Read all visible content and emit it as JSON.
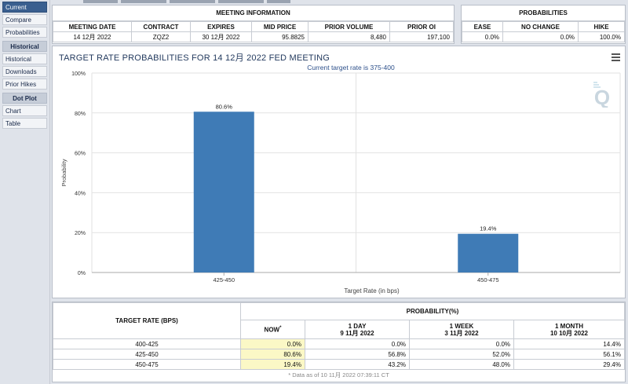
{
  "sidebar": {
    "items": [
      {
        "label": "Current",
        "active": true
      },
      {
        "label": "Compare"
      },
      {
        "label": "Probabilities"
      }
    ],
    "historical_heading": "Historical",
    "historical_items": [
      {
        "label": "Historical"
      },
      {
        "label": "Downloads"
      },
      {
        "label": "Prior Hikes"
      }
    ],
    "dotplot_heading": "Dot Plot",
    "dotplot_items": [
      {
        "label": "Chart"
      },
      {
        "label": "Table"
      }
    ]
  },
  "meeting_info": {
    "title": "MEETING INFORMATION",
    "headers": [
      "MEETING DATE",
      "CONTRACT",
      "EXPIRES",
      "MID PRICE",
      "PRIOR VOLUME",
      "PRIOR OI"
    ],
    "row": [
      "14 12月 2022",
      "ZQZ2",
      "30 12月 2022",
      "95.8825",
      "8,480",
      "197,100"
    ]
  },
  "probabilities": {
    "title": "PROBABILITIES",
    "headers": [
      "EASE",
      "NO CHANGE",
      "HIKE"
    ],
    "row": [
      "0.0%",
      "0.0%",
      "100.0%"
    ]
  },
  "chart": {
    "title": "TARGET RATE PROBABILITIES FOR 14 12月 2022 FED MEETING",
    "subtitle": "Current target rate is 375-400",
    "watermark": "Q"
  },
  "chart_data": {
    "type": "bar",
    "title": "TARGET RATE PROBABILITIES FOR 14 12月 2022 FED MEETING",
    "subtitle": "Current target rate is 375-400",
    "categories": [
      "425-450",
      "450-475"
    ],
    "values": [
      80.6,
      19.4
    ],
    "data_labels": [
      "80.6%",
      "19.4%"
    ],
    "xlabel": "Target Rate (in bps)",
    "ylabel": "Probability",
    "ylim": [
      0,
      100
    ],
    "yticks": [
      "0%",
      "20%",
      "40%",
      "60%",
      "80%",
      "100%"
    ],
    "grid": true,
    "bar_color": "#3f7bb6"
  },
  "rate_table": {
    "col_rate": "TARGET RATE (BPS)",
    "col_prob": "PROBABILITY(%)",
    "subheaders": [
      {
        "line1": "NOW",
        "line2": "",
        "star": "*"
      },
      {
        "line1": "1 DAY",
        "line2": "9 11月 2022"
      },
      {
        "line1": "1 WEEK",
        "line2": "3 11月 2022"
      },
      {
        "line1": "1 MONTH",
        "line2": "10 10月 2022"
      }
    ],
    "rows": [
      {
        "rate": "400-425",
        "values": [
          "0.0%",
          "0.0%",
          "0.0%",
          "14.4%"
        ]
      },
      {
        "rate": "425-450",
        "values": [
          "80.6%",
          "56.8%",
          "52.0%",
          "56.1%"
        ]
      },
      {
        "rate": "450-475",
        "values": [
          "19.4%",
          "43.2%",
          "48.0%",
          "29.4%"
        ]
      }
    ],
    "footnote": "* Data as of 10 11月 2022 07:39:11 CT"
  }
}
